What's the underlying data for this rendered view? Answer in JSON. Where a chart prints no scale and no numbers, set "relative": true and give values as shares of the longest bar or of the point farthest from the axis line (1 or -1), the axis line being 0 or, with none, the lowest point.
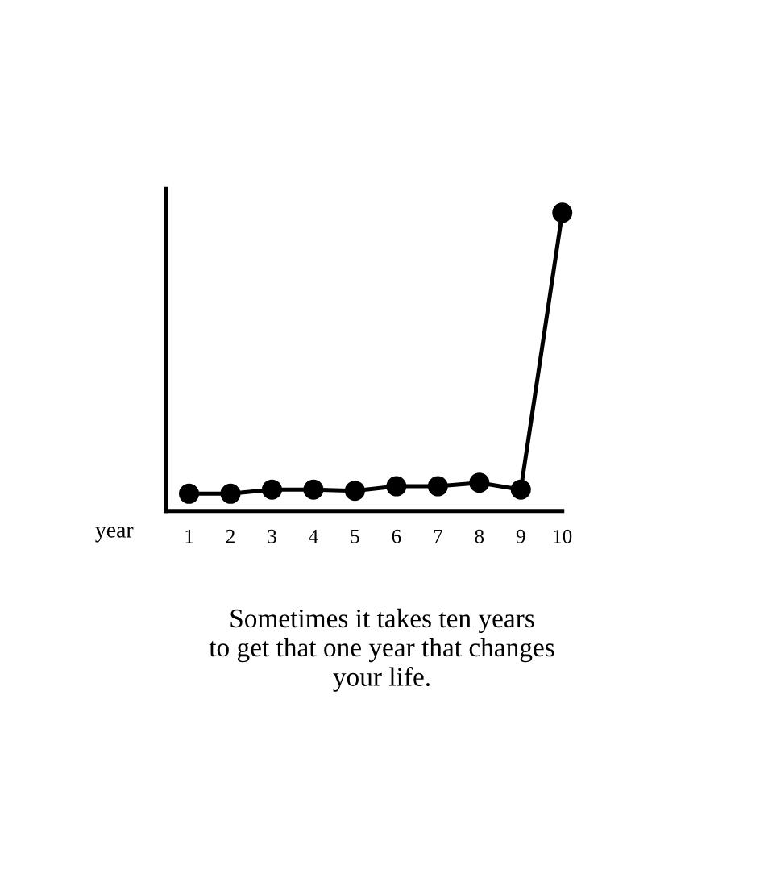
{
  "chart_data": {
    "type": "line",
    "relative": true,
    "xlabel": "year",
    "categories": [
      "1",
      "2",
      "3",
      "4",
      "5",
      "6",
      "7",
      "8",
      "9",
      "10"
    ],
    "series": [
      {
        "color": "#000000",
        "values": [
          0.058,
          0.058,
          0.072,
          0.072,
          0.068,
          0.083,
          0.083,
          0.095,
          0.072,
          1
        ]
      }
    ],
    "marker": "circle",
    "line_style": "solid",
    "grid": false,
    "legend": false,
    "annotations": [
      "Sometimes it takes ten years\nto get that one year that changes\nyour life."
    ]
  }
}
